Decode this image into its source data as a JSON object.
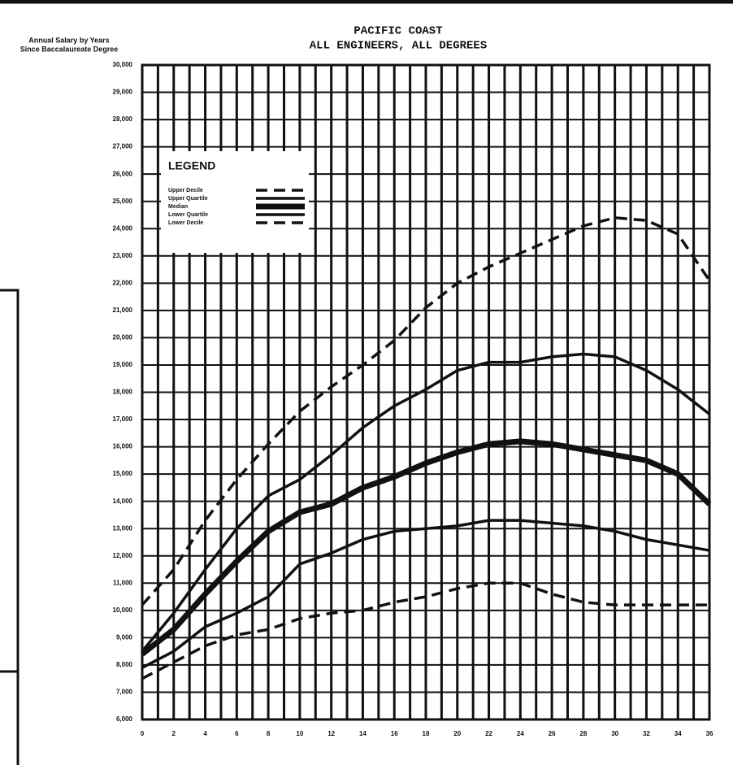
{
  "chart_data": {
    "type": "line",
    "title": "PACIFIC COAST",
    "subtitle": "ALL ENGINEERS, ALL DEGREES",
    "y_label": [
      "Annual Salary by Years",
      "Since Baccalaureate Degree"
    ],
    "legend_title": "LEGEND",
    "x": [
      0,
      2,
      4,
      6,
      8,
      10,
      12,
      14,
      16,
      18,
      20,
      22,
      24,
      26,
      28,
      30,
      32,
      34,
      36
    ],
    "series": [
      {
        "name": "Upper Decile",
        "color": "#111111",
        "style": "dashed",
        "width": "normal",
        "values": [
          10200,
          11500,
          13300,
          14800,
          16100,
          17300,
          18200,
          19000,
          19900,
          21100,
          22000,
          22600,
          23100,
          23600,
          24100,
          24400,
          24300,
          23800,
          22100
        ]
      },
      {
        "name": "Upper Quartile",
        "color": "#111111",
        "style": "solid",
        "width": "normal",
        "values": [
          8500,
          9900,
          11500,
          13000,
          14200,
          14800,
          15700,
          16700,
          17500,
          18100,
          18800,
          19100,
          19100,
          19300,
          19400,
          19300,
          18800,
          18100,
          17200
        ]
      },
      {
        "name": "Median",
        "color": "#111111",
        "style": "solid",
        "width": "thick",
        "values": [
          8400,
          9300,
          10600,
          11800,
          12900,
          13600,
          13900,
          14500,
          14900,
          15400,
          15800,
          16100,
          16200,
          16100,
          15900,
          15700,
          15500,
          15000,
          13900
        ]
      },
      {
        "name": "Lower Quartile",
        "color": "#111111",
        "style": "solid",
        "width": "normal",
        "values": [
          7900,
          8500,
          9400,
          9900,
          10500,
          11700,
          12100,
          12600,
          12900,
          13000,
          13100,
          13300,
          13300,
          13200,
          13100,
          12900,
          12600,
          12400,
          12200
        ]
      },
      {
        "name": "Lower Decile",
        "color": "#111111",
        "style": "dashed",
        "width": "normal",
        "values": [
          7500,
          8100,
          8700,
          9100,
          9300,
          9700,
          9900,
          10000,
          10300,
          10500,
          10800,
          11000,
          11000,
          10600,
          10300,
          10200,
          10200,
          10200,
          10200
        ]
      }
    ],
    "xlim": [
      0,
      36
    ],
    "xticks": [
      0,
      2,
      4,
      6,
      8,
      10,
      12,
      14,
      16,
      18,
      20,
      22,
      24,
      26,
      28,
      30,
      32,
      34,
      36
    ],
    "minor_xticks": [
      1,
      3,
      5,
      7,
      9,
      11,
      13,
      15,
      17,
      19,
      21,
      23,
      25,
      27,
      29,
      31,
      33,
      35
    ],
    "ylim": [
      6000,
      30000
    ],
    "yticks": [
      {
        "value": 6000,
        "label": "6,000"
      },
      {
        "value": 7000,
        "label": "7,000"
      },
      {
        "value": 8000,
        "label": "8,000"
      },
      {
        "value": 9000,
        "label": "9,000"
      },
      {
        "value": 10000,
        "label": "10,000"
      },
      {
        "value": 11000,
        "label": "11,000"
      },
      {
        "value": 12000,
        "label": "12,000"
      },
      {
        "value": 13000,
        "label": "13,000"
      },
      {
        "value": 14000,
        "label": "14,000"
      },
      {
        "value": 15000,
        "label": "15,000"
      },
      {
        "value": 16000,
        "label": "16,000"
      },
      {
        "value": 17000,
        "label": "17,000"
      },
      {
        "value": 18000,
        "label": "18,000"
      },
      {
        "value": 19000,
        "label": "19,000"
      },
      {
        "value": 20000,
        "label": "20,000"
      },
      {
        "value": 21000,
        "label": "21,000"
      },
      {
        "value": 22000,
        "label": "22,000"
      },
      {
        "value": 23000,
        "label": "23,000"
      },
      {
        "value": 24000,
        "label": "24,000"
      },
      {
        "value": 25000,
        "label": "25,000"
      },
      {
        "value": 26000,
        "label": "26,000"
      },
      {
        "value": 27000,
        "label": "27,000"
      },
      {
        "value": 28000,
        "label": "28,000"
      },
      {
        "value": 29000,
        "label": "29,000"
      },
      {
        "value": 30000,
        "label": "30,000"
      }
    ],
    "grid": true
  }
}
